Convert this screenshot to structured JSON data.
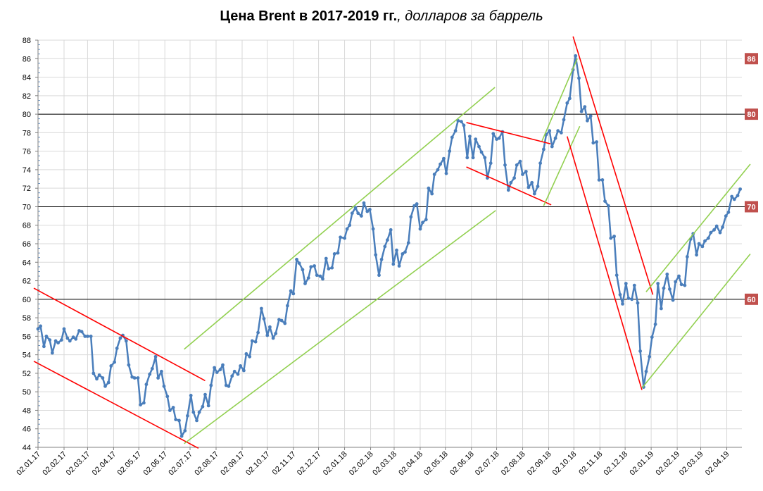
{
  "title": {
    "bold": "Цена Brent в 2017-2019 гг.",
    "italic": ", долларов за баррель"
  },
  "chart_data": {
    "type": "line",
    "ylim": [
      44,
      88
    ],
    "y_ticks": [
      44,
      46,
      48,
      50,
      52,
      54,
      56,
      58,
      60,
      62,
      64,
      66,
      68,
      70,
      72,
      74,
      76,
      78,
      80,
      82,
      84,
      86,
      88
    ],
    "x_ticks": [
      "02.01.17",
      "02.02.17",
      "02.03.17",
      "02.04.17",
      "02.05.17",
      "02.06.17",
      "02.07.17",
      "02.08.17",
      "02.09.17",
      "02.10.17",
      "02.11.17",
      "02.12.17",
      "02.01.18",
      "02.02.18",
      "02.03.18",
      "02.04.18",
      "02.05.18",
      "02.06.18",
      "02.07.18",
      "02.08.18",
      "02.09.18",
      "02.10.18",
      "02.11.18",
      "02.12.18",
      "02.01.19",
      "02.02.19",
      "02.03.19",
      "02.04.19"
    ],
    "x_end": "2019-04-20",
    "reference_levels": [
      {
        "value": 80,
        "label": "80"
      },
      {
        "value": 70,
        "label": "70"
      },
      {
        "value": 60,
        "label": "60"
      }
    ],
    "extra_badges": [
      {
        "value": 86,
        "label": "86"
      }
    ],
    "series": [
      {
        "color": "#4a7ebb",
        "points": [
          [
            "2017-01-02",
            56.8
          ],
          [
            "2017-01-05",
            57.1
          ],
          [
            "2017-01-09",
            54.9
          ],
          [
            "2017-01-12",
            56.0
          ],
          [
            "2017-01-16",
            55.6
          ],
          [
            "2017-01-19",
            54.2
          ],
          [
            "2017-01-23",
            55.5
          ],
          [
            "2017-01-26",
            55.3
          ],
          [
            "2017-01-30",
            55.6
          ],
          [
            "2017-02-02",
            56.8
          ],
          [
            "2017-02-06",
            55.8
          ],
          [
            "2017-02-09",
            55.5
          ],
          [
            "2017-02-13",
            55.9
          ],
          [
            "2017-02-16",
            55.7
          ],
          [
            "2017-02-20",
            56.6
          ],
          [
            "2017-02-23",
            56.5
          ],
          [
            "2017-02-27",
            56.0
          ],
          [
            "2017-03-02",
            56.0
          ],
          [
            "2017-03-06",
            56.0
          ],
          [
            "2017-03-09",
            52.0
          ],
          [
            "2017-03-13",
            51.4
          ],
          [
            "2017-03-16",
            51.8
          ],
          [
            "2017-03-20",
            51.5
          ],
          [
            "2017-03-23",
            50.6
          ],
          [
            "2017-03-27",
            51.0
          ],
          [
            "2017-03-30",
            52.8
          ],
          [
            "2017-04-03",
            53.2
          ],
          [
            "2017-04-06",
            54.7
          ],
          [
            "2017-04-10",
            55.8
          ],
          [
            "2017-04-13",
            56.1
          ],
          [
            "2017-04-17",
            55.5
          ],
          [
            "2017-04-20",
            52.9
          ],
          [
            "2017-04-24",
            51.6
          ],
          [
            "2017-04-27",
            51.5
          ],
          [
            "2017-05-01",
            51.5
          ],
          [
            "2017-05-04",
            48.6
          ],
          [
            "2017-05-08",
            48.8
          ],
          [
            "2017-05-11",
            50.8
          ],
          [
            "2017-05-15",
            51.9
          ],
          [
            "2017-05-18",
            52.5
          ],
          [
            "2017-05-22",
            53.8
          ],
          [
            "2017-05-25",
            51.5
          ],
          [
            "2017-05-29",
            52.2
          ],
          [
            "2017-06-01",
            50.6
          ],
          [
            "2017-06-05",
            49.5
          ],
          [
            "2017-06-08",
            48.0
          ],
          [
            "2017-06-12",
            48.3
          ],
          [
            "2017-06-15",
            47.0
          ],
          [
            "2017-06-19",
            46.9
          ],
          [
            "2017-06-22",
            45.2
          ],
          [
            "2017-06-26",
            45.8
          ],
          [
            "2017-06-29",
            47.4
          ],
          [
            "2017-07-03",
            49.6
          ],
          [
            "2017-07-06",
            47.8
          ],
          [
            "2017-07-10",
            46.9
          ],
          [
            "2017-07-13",
            47.8
          ],
          [
            "2017-07-17",
            48.4
          ],
          [
            "2017-07-20",
            49.7
          ],
          [
            "2017-07-24",
            48.5
          ],
          [
            "2017-07-27",
            50.7
          ],
          [
            "2017-07-31",
            52.6
          ],
          [
            "2017-08-03",
            52.1
          ],
          [
            "2017-08-07",
            52.4
          ],
          [
            "2017-08-10",
            52.9
          ],
          [
            "2017-08-14",
            50.7
          ],
          [
            "2017-08-17",
            50.6
          ],
          [
            "2017-08-21",
            51.7
          ],
          [
            "2017-08-24",
            52.2
          ],
          [
            "2017-08-28",
            51.9
          ],
          [
            "2017-08-31",
            52.8
          ],
          [
            "2017-09-04",
            52.3
          ],
          [
            "2017-09-07",
            54.1
          ],
          [
            "2017-09-11",
            53.8
          ],
          [
            "2017-09-14",
            55.5
          ],
          [
            "2017-09-18",
            55.4
          ],
          [
            "2017-09-21",
            56.4
          ],
          [
            "2017-09-25",
            59.0
          ],
          [
            "2017-09-28",
            57.9
          ],
          [
            "2017-10-02",
            56.1
          ],
          [
            "2017-10-05",
            57.0
          ],
          [
            "2017-10-09",
            55.8
          ],
          [
            "2017-10-12",
            56.3
          ],
          [
            "2017-10-16",
            57.8
          ],
          [
            "2017-10-19",
            57.7
          ],
          [
            "2017-10-23",
            57.4
          ],
          [
            "2017-10-26",
            59.3
          ],
          [
            "2017-10-30",
            60.9
          ],
          [
            "2017-11-02",
            60.6
          ],
          [
            "2017-11-06",
            64.3
          ],
          [
            "2017-11-09",
            63.9
          ],
          [
            "2017-11-13",
            63.2
          ],
          [
            "2017-11-16",
            61.7
          ],
          [
            "2017-11-20",
            62.3
          ],
          [
            "2017-11-23",
            63.5
          ],
          [
            "2017-11-27",
            63.6
          ],
          [
            "2017-11-30",
            62.6
          ],
          [
            "2017-12-04",
            62.5
          ],
          [
            "2017-12-07",
            62.2
          ],
          [
            "2017-12-11",
            64.4
          ],
          [
            "2017-12-14",
            63.3
          ],
          [
            "2017-12-18",
            63.4
          ],
          [
            "2017-12-21",
            64.9
          ],
          [
            "2017-12-25",
            65.0
          ],
          [
            "2017-12-28",
            66.7
          ],
          [
            "2018-01-02",
            66.6
          ],
          [
            "2018-01-05",
            67.6
          ],
          [
            "2018-01-08",
            68.0
          ],
          [
            "2018-01-11",
            69.3
          ],
          [
            "2018-01-15",
            69.9
          ],
          [
            "2018-01-18",
            69.3
          ],
          [
            "2018-01-22",
            69.0
          ],
          [
            "2018-01-25",
            70.4
          ],
          [
            "2018-01-29",
            69.5
          ],
          [
            "2018-02-01",
            69.7
          ],
          [
            "2018-02-05",
            67.6
          ],
          [
            "2018-02-08",
            64.8
          ],
          [
            "2018-02-12",
            62.6
          ],
          [
            "2018-02-15",
            64.3
          ],
          [
            "2018-02-19",
            65.7
          ],
          [
            "2018-02-22",
            66.4
          ],
          [
            "2018-02-26",
            67.5
          ],
          [
            "2018-03-01",
            63.8
          ],
          [
            "2018-03-05",
            65.3
          ],
          [
            "2018-03-08",
            63.6
          ],
          [
            "2018-03-12",
            64.9
          ],
          [
            "2018-03-15",
            65.1
          ],
          [
            "2018-03-19",
            66.1
          ],
          [
            "2018-03-22",
            68.9
          ],
          [
            "2018-03-26",
            70.1
          ],
          [
            "2018-03-29",
            70.3
          ],
          [
            "2018-04-02",
            67.6
          ],
          [
            "2018-04-05",
            68.3
          ],
          [
            "2018-04-09",
            68.6
          ],
          [
            "2018-04-12",
            72.0
          ],
          [
            "2018-04-16",
            71.4
          ],
          [
            "2018-04-19",
            73.5
          ],
          [
            "2018-04-23",
            74.0
          ],
          [
            "2018-04-26",
            74.6
          ],
          [
            "2018-04-30",
            75.2
          ],
          [
            "2018-05-03",
            73.6
          ],
          [
            "2018-05-07",
            76.0
          ],
          [
            "2018-05-10",
            77.5
          ],
          [
            "2018-05-14",
            78.2
          ],
          [
            "2018-05-17",
            79.3
          ],
          [
            "2018-05-21",
            79.2
          ],
          [
            "2018-05-24",
            78.8
          ],
          [
            "2018-05-28",
            75.3
          ],
          [
            "2018-05-31",
            77.6
          ],
          [
            "2018-06-04",
            75.3
          ],
          [
            "2018-06-07",
            77.3
          ],
          [
            "2018-06-11",
            76.5
          ],
          [
            "2018-06-14",
            75.9
          ],
          [
            "2018-06-18",
            75.3
          ],
          [
            "2018-06-21",
            73.1
          ],
          [
            "2018-06-25",
            74.7
          ],
          [
            "2018-06-28",
            77.9
          ],
          [
            "2018-07-02",
            77.3
          ],
          [
            "2018-07-05",
            77.4
          ],
          [
            "2018-07-09",
            78.1
          ],
          [
            "2018-07-12",
            74.5
          ],
          [
            "2018-07-16",
            71.8
          ],
          [
            "2018-07-19",
            72.6
          ],
          [
            "2018-07-23",
            73.1
          ],
          [
            "2018-07-26",
            74.5
          ],
          [
            "2018-07-30",
            74.9
          ],
          [
            "2018-08-02",
            73.5
          ],
          [
            "2018-08-06",
            73.8
          ],
          [
            "2018-08-09",
            72.1
          ],
          [
            "2018-08-13",
            72.6
          ],
          [
            "2018-08-16",
            71.4
          ],
          [
            "2018-08-20",
            72.2
          ],
          [
            "2018-08-23",
            74.7
          ],
          [
            "2018-08-27",
            76.2
          ],
          [
            "2018-08-30",
            77.8
          ],
          [
            "2018-09-03",
            78.2
          ],
          [
            "2018-09-06",
            76.5
          ],
          [
            "2018-09-10",
            77.4
          ],
          [
            "2018-09-13",
            78.2
          ],
          [
            "2018-09-17",
            78.0
          ],
          [
            "2018-09-20",
            79.4
          ],
          [
            "2018-09-24",
            81.2
          ],
          [
            "2018-09-27",
            81.7
          ],
          [
            "2018-10-01",
            84.8
          ],
          [
            "2018-10-04",
            86.3
          ],
          [
            "2018-10-08",
            83.9
          ],
          [
            "2018-10-11",
            80.3
          ],
          [
            "2018-10-15",
            80.8
          ],
          [
            "2018-10-18",
            79.3
          ],
          [
            "2018-10-22",
            79.8
          ],
          [
            "2018-10-25",
            76.9
          ],
          [
            "2018-10-29",
            77.0
          ],
          [
            "2018-11-01",
            72.9
          ],
          [
            "2018-11-05",
            72.9
          ],
          [
            "2018-11-08",
            70.6
          ],
          [
            "2018-11-12",
            70.1
          ],
          [
            "2018-11-15",
            66.6
          ],
          [
            "2018-11-19",
            66.8
          ],
          [
            "2018-11-22",
            62.6
          ],
          [
            "2018-11-26",
            60.5
          ],
          [
            "2018-11-29",
            59.5
          ],
          [
            "2018-12-03",
            61.7
          ],
          [
            "2018-12-06",
            60.1
          ],
          [
            "2018-12-10",
            60.0
          ],
          [
            "2018-12-13",
            61.5
          ],
          [
            "2018-12-17",
            59.6
          ],
          [
            "2018-12-20",
            54.4
          ],
          [
            "2018-12-24",
            50.5
          ],
          [
            "2018-12-27",
            52.2
          ],
          [
            "2018-12-31",
            53.8
          ],
          [
            "2019-01-03",
            55.9
          ],
          [
            "2019-01-07",
            57.3
          ],
          [
            "2019-01-10",
            61.7
          ],
          [
            "2019-01-14",
            59.0
          ],
          [
            "2019-01-17",
            61.2
          ],
          [
            "2019-01-21",
            62.7
          ],
          [
            "2019-01-24",
            61.1
          ],
          [
            "2019-01-28",
            59.9
          ],
          [
            "2019-01-31",
            61.9
          ],
          [
            "2019-02-04",
            62.5
          ],
          [
            "2019-02-07",
            61.6
          ],
          [
            "2019-02-11",
            61.5
          ],
          [
            "2019-02-14",
            64.6
          ],
          [
            "2019-02-18",
            66.5
          ],
          [
            "2019-02-21",
            67.1
          ],
          [
            "2019-02-25",
            64.8
          ],
          [
            "2019-02-28",
            66.0
          ],
          [
            "2019-03-04",
            65.7
          ],
          [
            "2019-03-07",
            66.3
          ],
          [
            "2019-03-11",
            66.6
          ],
          [
            "2019-03-14",
            67.2
          ],
          [
            "2019-03-18",
            67.5
          ],
          [
            "2019-03-21",
            67.9
          ],
          [
            "2019-03-25",
            67.2
          ],
          [
            "2019-03-28",
            67.8
          ],
          [
            "2019-04-01",
            69.0
          ],
          [
            "2019-04-04",
            69.4
          ],
          [
            "2019-04-08",
            71.1
          ],
          [
            "2019-04-11",
            70.8
          ],
          [
            "2019-04-15",
            71.2
          ],
          [
            "2019-04-18",
            71.9
          ]
        ]
      }
    ],
    "trend_lines": [
      {
        "color": "#ff0000",
        "from": [
          "2016-12-28",
          61.2
        ],
        "to": [
          "2017-07-20",
          51.2
        ]
      },
      {
        "color": "#ff0000",
        "from": [
          "2016-12-28",
          53.3
        ],
        "to": [
          "2017-07-12",
          43.9
        ]
      },
      {
        "color": "#92d050",
        "from": [
          "2017-06-25",
          54.6
        ],
        "to": [
          "2018-06-30",
          82.9
        ]
      },
      {
        "color": "#92d050",
        "from": [
          "2017-06-25",
          44.4
        ],
        "to": [
          "2018-07-01",
          69.6
        ]
      },
      {
        "color": "#ff0000",
        "from": [
          "2018-05-27",
          79.1
        ],
        "to": [
          "2018-09-04",
          76.8
        ]
      },
      {
        "color": "#ff0000",
        "from": [
          "2018-05-27",
          74.3
        ],
        "to": [
          "2018-09-05",
          70.2
        ]
      },
      {
        "color": "#92d050",
        "from": [
          "2018-08-25",
          77.1
        ],
        "to": [
          "2018-10-06",
          86.0
        ]
      },
      {
        "color": "#92d050",
        "from": [
          "2018-08-27",
          70.1
        ],
        "to": [
          "2018-10-09",
          78.7
        ]
      },
      {
        "color": "#ff0000",
        "from": [
          "2018-10-01",
          88.4
        ],
        "to": [
          "2019-01-04",
          60.5
        ]
      },
      {
        "color": "#ff0000",
        "from": [
          "2018-09-24",
          77.6
        ],
        "to": [
          "2018-12-22",
          50.2
        ]
      },
      {
        "color": "#92d050",
        "from": [
          "2018-12-27",
          60.8
        ],
        "to": [
          "2019-04-30",
          74.6
        ]
      },
      {
        "color": "#92d050",
        "from": [
          "2018-12-22",
          50.4
        ],
        "to": [
          "2019-04-30",
          64.9
        ]
      }
    ]
  }
}
